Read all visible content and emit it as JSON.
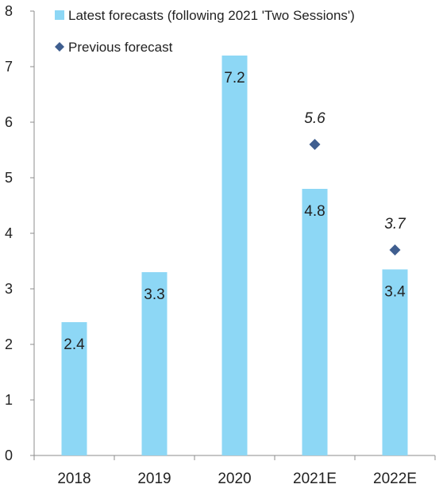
{
  "chart_data": {
    "type": "bar",
    "categories": [
      "2018",
      "2019",
      "2020",
      "2021E",
      "2022E"
    ],
    "series": [
      {
        "name": "Latest forecasts (following 2021 'Two Sessions')",
        "kind": "bar",
        "color": "#8dd7f5",
        "values": [
          2.4,
          3.3,
          7.2,
          4.8,
          3.35
        ],
        "labels": [
          "2.4",
          "3.3",
          "7.2",
          "4.8",
          "3.4"
        ]
      },
      {
        "name": "Previous forecast",
        "kind": "marker",
        "marker": "diamond",
        "color": "#3f5e8f",
        "values": [
          null,
          null,
          null,
          5.6,
          3.7
        ],
        "labels": [
          "",
          "",
          "",
          "5.6",
          "3.7"
        ]
      }
    ],
    "ylim": [
      0,
      8
    ],
    "yticks": [
      "0",
      "1",
      "2",
      "3",
      "4",
      "5",
      "6",
      "7",
      "8"
    ],
    "legend_position": "top",
    "grid": false
  }
}
